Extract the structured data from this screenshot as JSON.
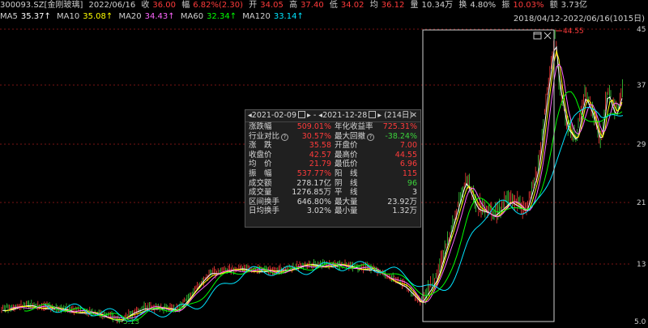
{
  "info": {
    "code": "300093.SZ[金刚玻璃]",
    "date": "2022/06/16",
    "close_label": "收",
    "close": "36.00",
    "chg_label": "幅",
    "chg": "6.82%(2.30)",
    "open_label": "开",
    "open": "34.05",
    "high_label": "高",
    "high": "37.40",
    "low_label": "低",
    "low": "34.02",
    "avg_label": "均",
    "avg": "36.12",
    "vol_label": "量",
    "vol": "10.34万",
    "turn_label": "换",
    "turn": "4.80%",
    "amp_label": "振",
    "amp": "10.03%",
    "amt_label": "额",
    "amt": "3.73亿"
  },
  "ma": [
    {
      "label": "MA5",
      "value": "35.37↑",
      "color": "#ffffff"
    },
    {
      "label": "MA10",
      "value": "35.08↑",
      "color": "#ffff00"
    },
    {
      "label": "MA20",
      "value": "34.43↑",
      "color": "#ff66ff"
    },
    {
      "label": "MA60",
      "value": "32.34↑",
      "color": "#00ff00"
    },
    {
      "label": "MA120",
      "value": "33.14↑",
      "color": "#00e5ff"
    }
  ],
  "range": "2018/04/12-2022/06/16(1015日)",
  "axis_labels": [
    "45",
    "37",
    "29",
    "21",
    "13",
    "5.0"
  ],
  "annotations": {
    "high": "44.55",
    "low": "5.13"
  },
  "panel": {
    "start": "2021-02-09",
    "sep": "-",
    "end": "2021-12-28",
    "days": "(214日)",
    "close": "✕",
    "rows": [
      {
        "l1": "涨跌幅",
        "v1": "509.01%",
        "c1": "#ff3b3b",
        "l2": "年化收益率",
        "v2": "725.31%",
        "c2": "#ff3b3b"
      },
      {
        "l1": "行业对比",
        "q1": true,
        "v1": "30.57%",
        "c1": "#ff3b3b",
        "l2": "最大回撤",
        "q2": true,
        "v2": "-38.24%",
        "c2": "#3bd33b"
      },
      {
        "l1": "涨　跌",
        "v1": "35.58",
        "c1": "#ff3b3b",
        "l2": "开盘价",
        "v2": "7.00",
        "c2": "#ff3b3b"
      },
      {
        "l1": "收盘价",
        "v1": "42.57",
        "c1": "#ff3b3b",
        "l2": "最高价",
        "v2": "44.55",
        "c2": "#ff3b3b"
      },
      {
        "l1": "均　价",
        "v1": "21.79",
        "c1": "#ff3b3b",
        "l2": "最低价",
        "v2": "6.96",
        "c2": "#ff3b3b"
      },
      {
        "l1": "振　幅",
        "v1": "537.77%",
        "c1": "#ff3b3b",
        "l2": "阳　线",
        "v2": "115",
        "c2": "#ff3b3b"
      },
      {
        "l1": "成交额",
        "v1": "278.17亿",
        "c1": "#d8d8d8",
        "l2": "阴　线",
        "v2": "96",
        "c2": "#3bd33b"
      },
      {
        "l1": "成交量",
        "v1": "1276.85万",
        "c1": "#d8d8d8",
        "l2": "平　线",
        "v2": "3",
        "c2": "#d8d8d8"
      },
      {
        "l1": "区间换手",
        "v1": "646.80%",
        "c1": "#d8d8d8",
        "l2": "最大量",
        "v2": "23.92万",
        "c2": "#d8d8d8"
      },
      {
        "l1": "日均换手",
        "v1": "3.02%",
        "c1": "#d8d8d8",
        "l2": "最小量",
        "v2": "1.32万",
        "c2": "#d8d8d8"
      }
    ]
  },
  "colors": {
    "up": "#ff3b3b",
    "down": "#3bd33b",
    "grid": "#7a1515",
    "select": "#d0d0d0"
  }
}
